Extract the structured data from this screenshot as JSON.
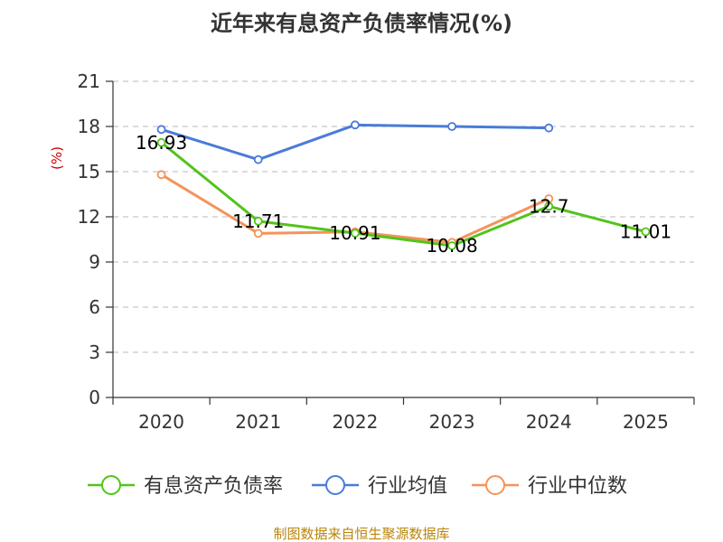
{
  "chart_data": {
    "type": "line",
    "title": "近年来有息资产负债率情况(%)",
    "ylabel": "(%)",
    "xlabel": "",
    "categories": [
      "2020",
      "2021",
      "2022",
      "2023",
      "2024",
      "2025"
    ],
    "ylim": [
      0,
      21
    ],
    "yticks": [
      0,
      3,
      6,
      9,
      12,
      15,
      18,
      21
    ],
    "grid": true,
    "legend_position": "bottom",
    "series": [
      {
        "name": "有息资产负债率",
        "color": "#52c41a",
        "values": [
          16.93,
          11.71,
          10.91,
          10.08,
          12.7,
          11.01
        ],
        "data_labels": [
          "16.93",
          "11.71",
          "10.91",
          "10.08",
          "12.7",
          "11.01"
        ]
      },
      {
        "name": "行业均值",
        "color": "#4a7bd8",
        "values": [
          17.8,
          15.8,
          18.1,
          18.0,
          17.9,
          null
        ]
      },
      {
        "name": "行业中位数",
        "color": "#f5935a",
        "values": [
          14.8,
          10.9,
          11.0,
          10.3,
          13.2,
          null
        ]
      }
    ],
    "source": "制图数据来自恒生聚源数据库"
  }
}
